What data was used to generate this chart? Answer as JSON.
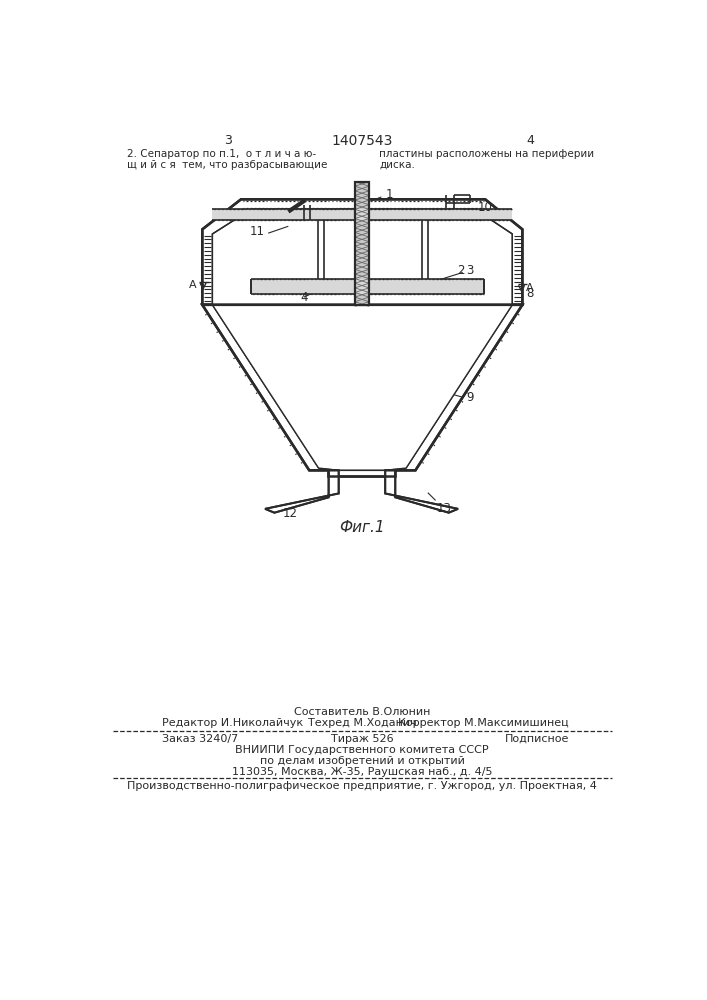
{
  "page_width": 7.07,
  "page_height": 10.0,
  "bg_color": "#ffffff",
  "line_color": "#2a2a2a",
  "header_left_num": "3",
  "header_center_num": "1407543",
  "header_right_num": "4",
  "fig_caption": "Фиг.1",
  "footer_costitutel": "Составитель В.Олюнин",
  "footer_editor": "Редактор И.Николайчук",
  "footer_tekhred": "Техред М.Ходанич",
  "footer_korrektor": "Корректор М.Максимишинец",
  "footer_zakaz": "Заказ 3240/7",
  "footer_tirazh": "Тираж 526",
  "footer_podpisnoe": "Подписное",
  "footer_vnipi": "ВНИИПИ Государственного комитета СССР",
  "footer_po_delam": "по делам изобретений и открытий",
  "footer_address": "113035, Москва, Ж-35, Раушская наб., д. 4/5",
  "footer_proizvod": "Производственно-полиграфическое предприятие, г. Ужгород, ул. Проектная, 4"
}
